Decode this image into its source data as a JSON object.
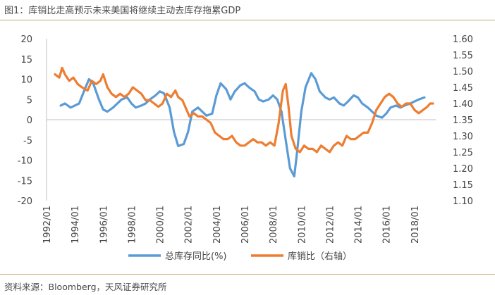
{
  "header": {
    "title": "图1：库销比走高预示未来美国将继续主动去库存拖累GDP"
  },
  "footer": {
    "source": "资料来源：Bloomberg，天风证券研究所"
  },
  "chart_data": {
    "type": "line",
    "title": "图1：库销比走高预示未来美国将继续主动去库存拖累GDP",
    "xlabel": "",
    "ylabel_left": "",
    "ylabel_right": "",
    "grid": false,
    "legend_position": "bottom",
    "x_ticks": [
      "1992/01",
      "1994/01",
      "1996/01",
      "1998/01",
      "2000/01",
      "2002/01",
      "2004/01",
      "2006/01",
      "2008/01",
      "2010/01",
      "2012/01",
      "2014/01",
      "2016/01",
      "2018/01"
    ],
    "xlim": [
      1992.0,
      2019.5
    ],
    "y_left": {
      "ticks": [
        20,
        15,
        10,
        5,
        0,
        -5,
        -10,
        -15,
        -20
      ],
      "ylim": [
        -20,
        20
      ]
    },
    "y_right": {
      "ticks": [
        "1.60",
        "1.55",
        "1.50",
        "1.45",
        "1.40",
        "1.35",
        "1.30",
        "1.25",
        "1.20",
        "1.15",
        "1.10"
      ],
      "ylim": [
        1.1,
        1.6
      ]
    },
    "series": [
      {
        "name": "总库存同比(%)",
        "axis": "left",
        "color": "#5b9bd5",
        "x": [
          1993.0,
          1993.3,
          1993.7,
          1994.0,
          1994.3,
          1994.7,
          1995.0,
          1995.3,
          1995.7,
          1996.0,
          1996.3,
          1996.7,
          1997.0,
          1997.3,
          1997.7,
          1998.0,
          1998.3,
          1998.7,
          1999.0,
          1999.3,
          1999.7,
          2000.0,
          2000.3,
          2000.7,
          2001.0,
          2001.3,
          2001.7,
          2002.0,
          2002.3,
          2002.7,
          2003.0,
          2003.3,
          2003.7,
          2004.0,
          2004.3,
          2004.7,
          2005.0,
          2005.3,
          2005.7,
          2006.0,
          2006.3,
          2006.7,
          2007.0,
          2007.3,
          2007.7,
          2008.0,
          2008.3,
          2008.6,
          2008.9,
          2009.2,
          2009.5,
          2009.7,
          2010.0,
          2010.3,
          2010.7,
          2011.0,
          2011.3,
          2011.7,
          2012.0,
          2012.3,
          2012.7,
          2013.0,
          2013.3,
          2013.7,
          2014.0,
          2014.3,
          2014.7,
          2015.0,
          2015.3,
          2015.7,
          2016.0,
          2016.3,
          2016.7,
          2017.0,
          2017.3,
          2017.7,
          2018.0,
          2018.3,
          2018.7
        ],
        "values": [
          3.5,
          4.0,
          3.0,
          3.5,
          4.0,
          7.5,
          10.0,
          9.0,
          5.0,
          2.5,
          2.0,
          3.0,
          4.0,
          5.0,
          5.5,
          4.0,
          3.0,
          3.5,
          4.0,
          5.0,
          6.0,
          7.0,
          6.5,
          3.0,
          -3.0,
          -6.5,
          -6.0,
          -3.0,
          2.0,
          3.0,
          2.0,
          1.0,
          1.5,
          6.0,
          9.0,
          7.5,
          5.0,
          7.0,
          8.5,
          9.0,
          8.0,
          7.0,
          5.0,
          4.5,
          5.0,
          6.0,
          5.0,
          2.0,
          -5.0,
          -12.0,
          -14.0,
          -8.0,
          2.0,
          8.0,
          11.5,
          10.0,
          7.0,
          5.5,
          5.0,
          5.5,
          4.0,
          3.5,
          4.5,
          6.0,
          5.5,
          4.0,
          3.0,
          2.0,
          1.0,
          0.5,
          1.5,
          3.0,
          3.5,
          3.0,
          3.5,
          4.0,
          4.5,
          5.0,
          5.5
        ]
      },
      {
        "name": "库销比（右轴）",
        "axis": "right",
        "color": "#ed7d31",
        "x": [
          1992.6,
          1992.9,
          1993.1,
          1993.3,
          1993.6,
          1993.9,
          1994.2,
          1994.5,
          1994.9,
          1995.2,
          1995.5,
          1995.8,
          1996.0,
          1996.3,
          1996.6,
          1996.9,
          1997.2,
          1997.5,
          1997.8,
          1998.1,
          1998.4,
          1998.7,
          1999.0,
          1999.3,
          1999.6,
          1999.9,
          2000.2,
          2000.5,
          2000.8,
          2001.1,
          2001.3,
          2001.6,
          2001.9,
          2002.1,
          2002.4,
          2002.7,
          2003.0,
          2003.3,
          2003.6,
          2003.9,
          2004.2,
          2004.5,
          2004.8,
          2005.1,
          2005.4,
          2005.7,
          2006.0,
          2006.3,
          2006.6,
          2006.9,
          2007.2,
          2007.5,
          2007.8,
          2008.1,
          2008.4,
          2008.7,
          2008.9,
          2009.1,
          2009.3,
          2009.6,
          2009.9,
          2010.2,
          2010.5,
          2010.8,
          2011.1,
          2011.4,
          2011.7,
          2012.0,
          2012.3,
          2012.6,
          2012.9,
          2013.2,
          2013.5,
          2013.8,
          2014.1,
          2014.4,
          2014.7,
          2015.0,
          2015.3,
          2015.6,
          2015.9,
          2016.2,
          2016.5,
          2016.8,
          2017.1,
          2017.4,
          2017.7,
          2018.0,
          2018.3,
          2018.6,
          2018.9,
          2019.1,
          2019.3
        ],
        "values": [
          1.49,
          1.48,
          1.51,
          1.49,
          1.47,
          1.48,
          1.46,
          1.45,
          1.44,
          1.47,
          1.46,
          1.47,
          1.49,
          1.45,
          1.43,
          1.42,
          1.43,
          1.42,
          1.43,
          1.45,
          1.44,
          1.43,
          1.41,
          1.41,
          1.4,
          1.39,
          1.4,
          1.43,
          1.42,
          1.44,
          1.42,
          1.41,
          1.38,
          1.36,
          1.37,
          1.36,
          1.36,
          1.35,
          1.34,
          1.31,
          1.3,
          1.29,
          1.29,
          1.3,
          1.28,
          1.27,
          1.27,
          1.28,
          1.29,
          1.28,
          1.28,
          1.27,
          1.28,
          1.27,
          1.34,
          1.44,
          1.46,
          1.39,
          1.3,
          1.26,
          1.25,
          1.27,
          1.26,
          1.26,
          1.25,
          1.27,
          1.26,
          1.25,
          1.27,
          1.28,
          1.27,
          1.3,
          1.29,
          1.29,
          1.3,
          1.31,
          1.31,
          1.34,
          1.38,
          1.4,
          1.42,
          1.43,
          1.42,
          1.4,
          1.39,
          1.4,
          1.4,
          1.38,
          1.37,
          1.38,
          1.39,
          1.4,
          1.4
        ]
      }
    ]
  }
}
